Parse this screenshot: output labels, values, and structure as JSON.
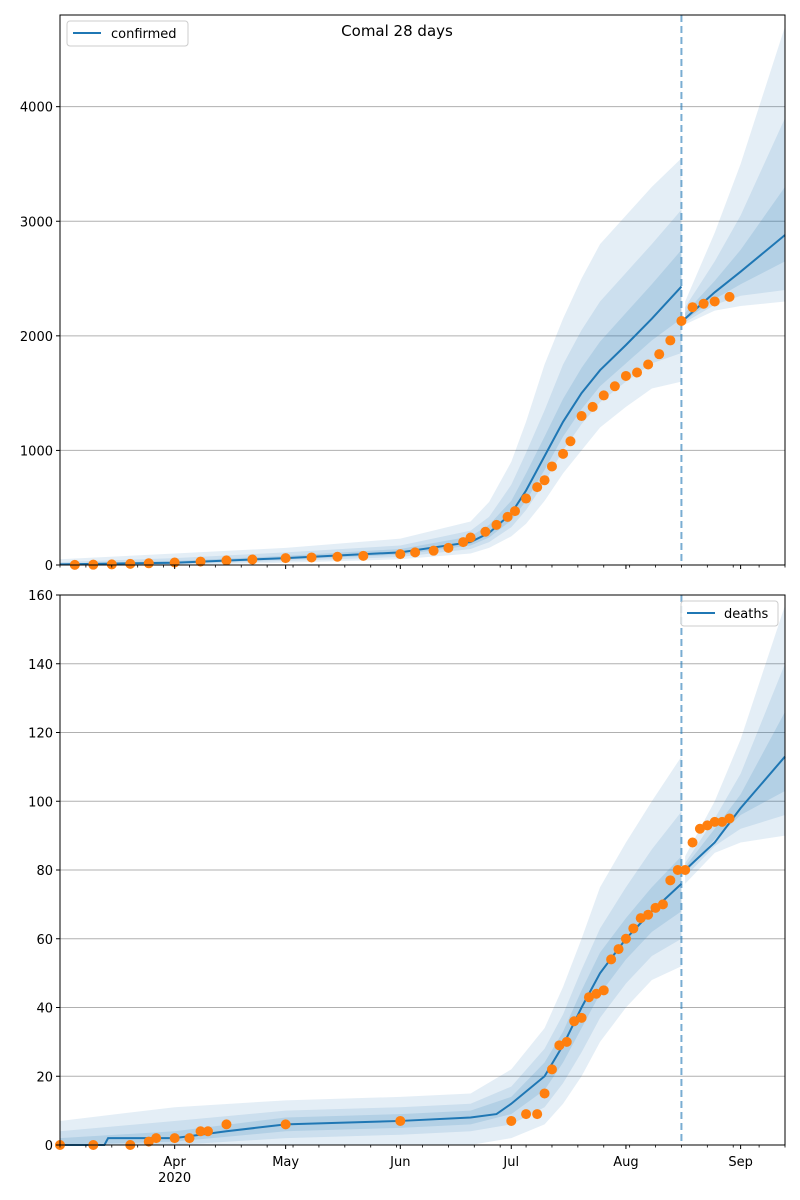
{
  "colors": {
    "model": "#1f77b4",
    "observed": "#ff7f0e",
    "band": "#1f77b4",
    "grid": "#b0b0b0",
    "forecast_line": "#1f77b4"
  },
  "chart_data": [
    {
      "type": "line",
      "title": "Comal 28 days",
      "legend": {
        "label": "confirmed",
        "placement": "top-left"
      },
      "x_axis": {
        "type": "date",
        "range": [
          "2020-03-01",
          "2020-09-13"
        ],
        "tick_labels": [
          "Apr",
          "May",
          "Jun",
          "Jul",
          "Aug",
          "Sep"
        ],
        "tick_dates": [
          "2020-04-01",
          "2020-05-01",
          "2020-06-01",
          "2020-07-01",
          "2020-08-01",
          "2020-09-01"
        ],
        "year_label": "2020"
      },
      "ylim": [
        0,
        4800
      ],
      "y_ticks": [
        0,
        1000,
        2000,
        3000,
        4000
      ],
      "grid": "horizontal",
      "forecast_start": "2020-08-16",
      "model": {
        "x": [
          "2020-03-01",
          "2020-04-01",
          "2020-05-01",
          "2020-06-01",
          "2020-06-20",
          "2020-06-25",
          "2020-07-01",
          "2020-07-05",
          "2020-07-10",
          "2020-07-15",
          "2020-07-20",
          "2020-07-25",
          "2020-08-01",
          "2020-08-08",
          "2020-08-16",
          "2020-08-17",
          "2020-08-25",
          "2020-09-01",
          "2020-09-13"
        ],
        "y": [
          5,
          20,
          60,
          110,
          200,
          280,
          450,
          650,
          950,
          1250,
          1500,
          1700,
          1920,
          2150,
          2430,
          2150,
          2380,
          2560,
          2880
        ]
      },
      "bands": [
        {
          "level": "outer",
          "x": [
            "2020-03-01",
            "2020-04-01",
            "2020-05-01",
            "2020-06-01",
            "2020-06-20",
            "2020-06-25",
            "2020-07-01",
            "2020-07-05",
            "2020-07-10",
            "2020-07-15",
            "2020-07-20",
            "2020-07-25",
            "2020-08-01",
            "2020-08-08",
            "2020-08-16",
            "2020-08-17",
            "2020-08-25",
            "2020-09-01",
            "2020-09-13"
          ],
          "lower": [
            0,
            0,
            20,
            50,
            100,
            150,
            250,
            360,
            560,
            800,
            1000,
            1200,
            1380,
            1540,
            1600,
            2100,
            2220,
            2260,
            2300
          ],
          "upper": [
            50,
            100,
            150,
            230,
            380,
            550,
            900,
            1250,
            1750,
            2150,
            2500,
            2800,
            3050,
            3300,
            3550,
            2300,
            2900,
            3500,
            4700
          ]
        },
        {
          "level": "middle",
          "x": [
            "2020-03-01",
            "2020-04-01",
            "2020-05-01",
            "2020-06-01",
            "2020-06-20",
            "2020-06-25",
            "2020-07-01",
            "2020-07-05",
            "2020-07-10",
            "2020-07-15",
            "2020-07-20",
            "2020-07-25",
            "2020-08-01",
            "2020-08-08",
            "2020-08-16",
            "2020-08-17",
            "2020-08-25",
            "2020-09-01",
            "2020-09-13"
          ],
          "lower": [
            0,
            5,
            35,
            70,
            140,
            200,
            330,
            480,
            720,
            1000,
            1230,
            1420,
            1600,
            1760,
            1850,
            2120,
            2270,
            2350,
            2400
          ],
          "upper": [
            25,
            60,
            110,
            170,
            300,
            420,
            700,
            980,
            1350,
            1750,
            2050,
            2300,
            2550,
            2800,
            3100,
            2250,
            2650,
            3050,
            3900
          ]
        },
        {
          "level": "inner",
          "x": [
            "2020-03-01",
            "2020-04-01",
            "2020-05-01",
            "2020-06-01",
            "2020-06-20",
            "2020-06-25",
            "2020-07-01",
            "2020-07-05",
            "2020-07-10",
            "2020-07-15",
            "2020-07-20",
            "2020-07-25",
            "2020-08-01",
            "2020-08-08",
            "2020-08-16",
            "2020-08-17",
            "2020-08-25",
            "2020-09-01",
            "2020-09-13"
          ],
          "lower": [
            2,
            12,
            48,
            90,
            170,
            240,
            390,
            560,
            830,
            1120,
            1360,
            1560,
            1760,
            1960,
            2150,
            2135,
            2320,
            2450,
            2650
          ],
          "upper": [
            12,
            35,
            80,
            140,
            250,
            350,
            560,
            800,
            1120,
            1450,
            1720,
            1950,
            2200,
            2450,
            2750,
            2200,
            2480,
            2750,
            3300
          ]
        }
      ],
      "observed": {
        "x": [
          "2020-03-05",
          "2020-03-10",
          "2020-03-15",
          "2020-03-20",
          "2020-03-25",
          "2020-04-01",
          "2020-04-08",
          "2020-04-15",
          "2020-04-22",
          "2020-05-01",
          "2020-05-08",
          "2020-05-15",
          "2020-05-22",
          "2020-06-01",
          "2020-06-05",
          "2020-06-10",
          "2020-06-14",
          "2020-06-18",
          "2020-06-20",
          "2020-06-24",
          "2020-06-27",
          "2020-06-30",
          "2020-07-02",
          "2020-07-05",
          "2020-07-08",
          "2020-07-10",
          "2020-07-12",
          "2020-07-15",
          "2020-07-17",
          "2020-07-20",
          "2020-07-23",
          "2020-07-26",
          "2020-07-29",
          "2020-08-01",
          "2020-08-04",
          "2020-08-07",
          "2020-08-10",
          "2020-08-13",
          "2020-08-16",
          "2020-08-19",
          "2020-08-22",
          "2020-08-25",
          "2020-08-29"
        ],
        "y": [
          1,
          3,
          5,
          10,
          15,
          22,
          30,
          40,
          48,
          60,
          66,
          72,
          80,
          95,
          110,
          125,
          150,
          200,
          240,
          290,
          350,
          420,
          470,
          580,
          680,
          740,
          860,
          970,
          1080,
          1300,
          1380,
          1480,
          1560,
          1650,
          1680,
          1750,
          1840,
          1960,
          2130,
          2250,
          2280,
          2300,
          2340
        ]
      }
    },
    {
      "type": "line",
      "title": "",
      "legend": {
        "label": "deaths",
        "placement": "top-right"
      },
      "x_axis": {
        "type": "date",
        "range": [
          "2020-03-01",
          "2020-09-13"
        ],
        "tick_labels": [
          "Apr",
          "May",
          "Jun",
          "Jul",
          "Aug",
          "Sep"
        ],
        "tick_dates": [
          "2020-04-01",
          "2020-05-01",
          "2020-06-01",
          "2020-07-01",
          "2020-08-01",
          "2020-09-01"
        ],
        "year_label": "2020"
      },
      "ylim": [
        0,
        160
      ],
      "y_ticks": [
        0,
        20,
        40,
        60,
        80,
        100,
        120,
        140,
        160
      ],
      "grid": "horizontal",
      "forecast_start": "2020-08-16",
      "model": {
        "x": [
          "2020-03-01",
          "2020-03-13",
          "2020-03-14",
          "2020-04-01",
          "2020-04-15",
          "2020-05-01",
          "2020-06-01",
          "2020-06-20",
          "2020-06-27",
          "2020-07-01",
          "2020-07-10",
          "2020-07-15",
          "2020-07-20",
          "2020-07-25",
          "2020-08-01",
          "2020-08-08",
          "2020-08-16",
          "2020-08-17",
          "2020-08-25",
          "2020-09-01",
          "2020-09-13"
        ],
        "y": [
          0,
          0,
          2,
          2,
          4,
          6,
          7,
          8,
          9,
          12,
          20,
          29,
          40,
          50,
          60,
          68,
          76,
          80,
          88,
          98,
          113
        ]
      },
      "bands": [
        {
          "level": "outer",
          "x": [
            "2020-03-01",
            "2020-04-01",
            "2020-05-01",
            "2020-06-01",
            "2020-06-20",
            "2020-07-01",
            "2020-07-10",
            "2020-07-15",
            "2020-07-20",
            "2020-07-25",
            "2020-08-01",
            "2020-08-08",
            "2020-08-16",
            "2020-08-17",
            "2020-08-25",
            "2020-09-01",
            "2020-09-13"
          ],
          "lower": [
            0,
            0,
            0,
            0,
            0,
            2,
            6,
            12,
            20,
            30,
            40,
            48,
            52,
            76,
            85,
            88,
            90
          ],
          "upper": [
            7,
            11,
            13,
            14,
            15,
            22,
            34,
            46,
            60,
            75,
            88,
            100,
            113,
            84,
            100,
            118,
            157
          ]
        },
        {
          "level": "middle",
          "x": [
            "2020-03-01",
            "2020-04-01",
            "2020-05-01",
            "2020-06-01",
            "2020-06-20",
            "2020-07-01",
            "2020-07-10",
            "2020-07-15",
            "2020-07-20",
            "2020-07-25",
            "2020-08-01",
            "2020-08-08",
            "2020-08-16",
            "2020-08-17",
            "2020-08-25",
            "2020-09-01",
            "2020-09-13"
          ],
          "lower": [
            0,
            0,
            2,
            3,
            4,
            6,
            11,
            18,
            27,
            37,
            47,
            55,
            60,
            78,
            87,
            92,
            96
          ],
          "upper": [
            4,
            7,
            10,
            11,
            12,
            17,
            28,
            38,
            51,
            63,
            75,
            86,
            97,
            82,
            95,
            108,
            140
          ]
        },
        {
          "level": "inner",
          "x": [
            "2020-03-01",
            "2020-04-01",
            "2020-05-01",
            "2020-06-01",
            "2020-06-20",
            "2020-07-01",
            "2020-07-10",
            "2020-07-15",
            "2020-07-20",
            "2020-07-25",
            "2020-08-01",
            "2020-08-08",
            "2020-08-16",
            "2020-08-17",
            "2020-08-25",
            "2020-09-01",
            "2020-09-13"
          ],
          "lower": [
            0,
            1,
            4,
            5,
            6,
            9,
            16,
            24,
            34,
            44,
            54,
            62,
            68,
            79,
            89,
            96,
            103
          ],
          "upper": [
            2,
            4,
            8,
            9,
            10,
            14,
            24,
            33,
            45,
            56,
            66,
            75,
            84,
            81,
            92,
            102,
            126
          ]
        }
      ],
      "observed": {
        "x": [
          "2020-03-01",
          "2020-03-10",
          "2020-03-20",
          "2020-03-25",
          "2020-03-27",
          "2020-04-01",
          "2020-04-05",
          "2020-04-08",
          "2020-04-10",
          "2020-04-15",
          "2020-05-01",
          "2020-06-01",
          "2020-07-01",
          "2020-07-05",
          "2020-07-08",
          "2020-07-10",
          "2020-07-12",
          "2020-07-14",
          "2020-07-16",
          "2020-07-18",
          "2020-07-20",
          "2020-07-22",
          "2020-07-24",
          "2020-07-26",
          "2020-07-28",
          "2020-07-30",
          "2020-08-01",
          "2020-08-03",
          "2020-08-05",
          "2020-08-07",
          "2020-08-09",
          "2020-08-11",
          "2020-08-13",
          "2020-08-15",
          "2020-08-17",
          "2020-08-19",
          "2020-08-21",
          "2020-08-23",
          "2020-08-25",
          "2020-08-27",
          "2020-08-29"
        ],
        "y": [
          0,
          0,
          0,
          1,
          2,
          2,
          2,
          4,
          4,
          6,
          6,
          7,
          7,
          9,
          9,
          15,
          22,
          29,
          30,
          36,
          37,
          43,
          44,
          45,
          54,
          57,
          60,
          63,
          66,
          67,
          69,
          70,
          77,
          80,
          80,
          88,
          92,
          93,
          94,
          94,
          95
        ]
      }
    }
  ]
}
